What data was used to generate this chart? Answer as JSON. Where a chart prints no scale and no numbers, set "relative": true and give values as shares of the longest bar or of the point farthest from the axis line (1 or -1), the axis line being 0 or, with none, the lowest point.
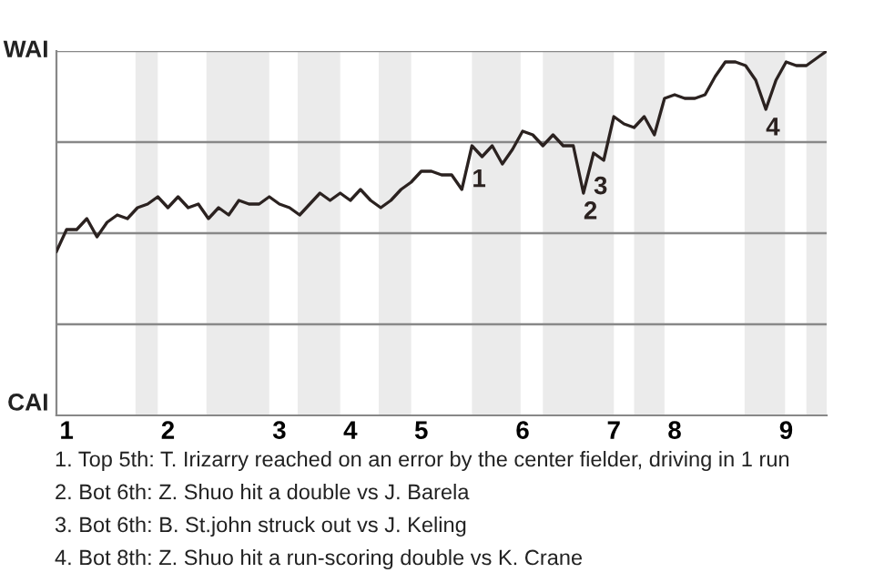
{
  "chart_data": {
    "type": "line",
    "relative": true,
    "categories": [
      null,
      "1",
      null,
      null,
      null,
      null,
      null,
      null,
      null,
      null,
      null,
      "2",
      null,
      null,
      null,
      null,
      null,
      null,
      null,
      null,
      null,
      null,
      "3",
      null,
      null,
      null,
      null,
      null,
      null,
      "4",
      null,
      null,
      null,
      null,
      null,
      null,
      "5",
      null,
      null,
      null,
      null,
      null,
      null,
      null,
      null,
      null,
      "6",
      null,
      null,
      null,
      null,
      null,
      null,
      null,
      null,
      "7",
      null,
      null,
      null,
      null,
      null,
      "8",
      null,
      null,
      null,
      null,
      null,
      null,
      null,
      null,
      null,
      null,
      "9",
      null,
      null,
      null,
      null
    ],
    "grid": "y",
    "marker": "none",
    "line_style": "solid",
    "series": [
      {
        "color": "#2b2220",
        "values": [
          0.45,
          0.51,
          0.51,
          0.54,
          0.49,
          0.53,
          0.55,
          0.54,
          0.57,
          0.58,
          0.6,
          0.57,
          0.6,
          0.57,
          0.58,
          0.54,
          0.57,
          0.55,
          0.59,
          0.58,
          0.58,
          0.6,
          0.58,
          0.57,
          0.55,
          0.58,
          0.61,
          0.59,
          0.61,
          0.59,
          0.62,
          0.59,
          0.57,
          0.59,
          0.62,
          0.64,
          0.67,
          0.67,
          0.66,
          0.66,
          0.62,
          0.74,
          0.71,
          0.74,
          0.69,
          0.73,
          0.78,
          0.77,
          0.74,
          0.77,
          0.74,
          0.74,
          0.61,
          0.72,
          0.7,
          0.82,
          0.8,
          0.79,
          0.82,
          0.77,
          0.87,
          0.88,
          0.87,
          0.87,
          0.88,
          0.93,
          0.97,
          0.97,
          0.96,
          0.92,
          0.84,
          0.92,
          0.97,
          0.96,
          0.96,
          0.98,
          1.0
        ]
      }
    ],
    "annotations": [
      {
        "text": "1",
        "y": 0.74
      },
      {
        "text": "2",
        "y": 0.61
      },
      {
        "text": "3",
        "y": 0.72
      },
      {
        "text": "4",
        "y": 0.84
      },
      "WAI",
      "CAI",
      "1. Top 5th: T. Irizarry reached on an error by the center fielder, driving in 1 run",
      "2. Bot 6th: Z. Shuo hit a double vs J. Barela",
      "3. Bot 6th: B. St.john struck out vs J. Keling",
      "4. Bot 8th: Z. Shuo hit a run-scoring double vs K. Crane"
    ]
  }
}
